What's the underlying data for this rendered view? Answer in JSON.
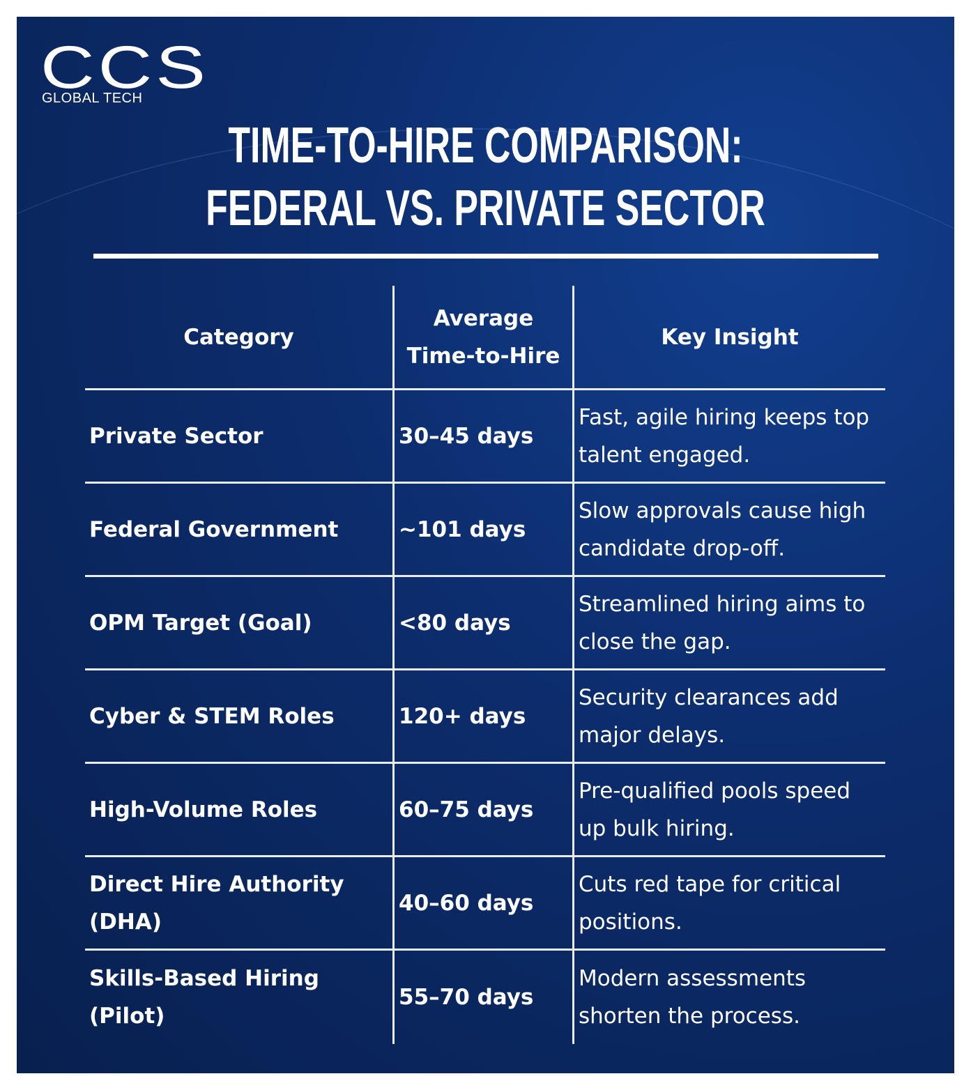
{
  "logo": {
    "name": "CCS",
    "tagline": "GLOBAL TECH"
  },
  "header": {
    "title": [
      "TIME-TO-HIRE COMPARISON:",
      "FEDERAL VS. PRIVATE SECTOR"
    ]
  },
  "table": {
    "columns": [
      "Category",
      "Average Time-to-Hire",
      "Key Insight"
    ],
    "rows": [
      [
        "Private Sector",
        "30–45 days",
        "Fast, agile hiring keeps top talent engaged."
      ],
      [
        "Federal Government",
        "~101 days",
        "Slow approvals cause high candidate drop-off."
      ],
      [
        "OPM Target (Goal)",
        "<80 days",
        "Streamlined hiring aims to close the gap."
      ],
      [
        "Cyber & STEM Roles",
        "120+ days",
        "Security clearances add major delays."
      ],
      [
        "High-Volume Roles",
        "60–75 days",
        "Pre-qualified pools speed up bulk hiring."
      ],
      [
        "Direct Hire Authority (DHA)",
        "40–60 days",
        "Cuts red tape for critical positions."
      ],
      [
        "Skills-Based Hiring (Pilot)",
        "55–70 days",
        "Modern assessments shorten the process."
      ]
    ]
  }
}
